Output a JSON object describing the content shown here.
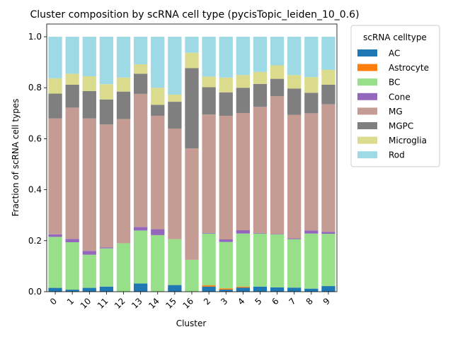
{
  "chart_data": {
    "type": "bar",
    "stacked": true,
    "title": "Cluster composition by scRNA cell type (pycisTopic_leiden_10_0.6)",
    "xlabel": "Cluster",
    "ylabel": "Fraction of scRNA cell types",
    "ylim": [
      0,
      1.05
    ],
    "yticks": [
      "0.0",
      "0.2",
      "0.4",
      "0.6",
      "0.8",
      "1.0"
    ],
    "grid": false,
    "legend_placement": "outside-right-top",
    "legend_title": "scRNA celltype",
    "categories": [
      "0",
      "1",
      "10",
      "11",
      "12",
      "13",
      "14",
      "15",
      "16",
      "2",
      "3",
      "4",
      "5",
      "6",
      "7",
      "8",
      "9"
    ],
    "series": [
      {
        "name": "AC",
        "color": "#1f77b4",
        "values": [
          0.015,
          0.008,
          0.015,
          0.02,
          0.0,
          0.032,
          0.0,
          0.026,
          0.0,
          0.02,
          0.008,
          0.016,
          0.02,
          0.017,
          0.016,
          0.012,
          0.022
        ]
      },
      {
        "name": "Astrocyte",
        "color": "#ff7f0e",
        "values": [
          0.0,
          0.0,
          0.0,
          0.0,
          0.0,
          0.0,
          0.0,
          0.0,
          0.0,
          0.005,
          0.005,
          0.004,
          0.0,
          0.0,
          0.0,
          0.0,
          0.0
        ]
      },
      {
        "name": "BC",
        "color": "#98df8a",
        "values": [
          0.2,
          0.186,
          0.13,
          0.15,
          0.19,
          0.208,
          0.222,
          0.18,
          0.125,
          0.203,
          0.182,
          0.208,
          0.208,
          0.208,
          0.19,
          0.216,
          0.205
        ]
      },
      {
        "name": "Cone",
        "color": "#9467bd",
        "values": [
          0.01,
          0.013,
          0.015,
          0.004,
          0.0,
          0.014,
          0.023,
          0.0,
          0.0,
          0.002,
          0.01,
          0.013,
          0.002,
          0.002,
          0.003,
          0.012,
          0.008
        ]
      },
      {
        "name": "MG",
        "color": "#c49c94",
        "values": [
          0.455,
          0.515,
          0.52,
          0.482,
          0.487,
          0.522,
          0.445,
          0.434,
          0.437,
          0.465,
          0.485,
          0.46,
          0.495,
          0.54,
          0.485,
          0.46,
          0.5
        ]
      },
      {
        "name": "MGPC",
        "color": "#7f7f7f",
        "values": [
          0.097,
          0.09,
          0.107,
          0.098,
          0.108,
          0.079,
          0.043,
          0.105,
          0.315,
          0.107,
          0.092,
          0.099,
          0.09,
          0.068,
          0.103,
          0.08,
          0.077
        ]
      },
      {
        "name": "Microglia",
        "color": "#dbdb8d",
        "values": [
          0.06,
          0.043,
          0.058,
          0.06,
          0.055,
          0.037,
          0.067,
          0.028,
          0.06,
          0.042,
          0.058,
          0.05,
          0.047,
          0.053,
          0.053,
          0.062,
          0.058
        ]
      },
      {
        "name": "Rod",
        "color": "#9edae5",
        "values": [
          0.163,
          0.145,
          0.155,
          0.186,
          0.16,
          0.108,
          0.2,
          0.227,
          0.063,
          0.156,
          0.16,
          0.15,
          0.138,
          0.112,
          0.15,
          0.158,
          0.13
        ]
      }
    ]
  }
}
